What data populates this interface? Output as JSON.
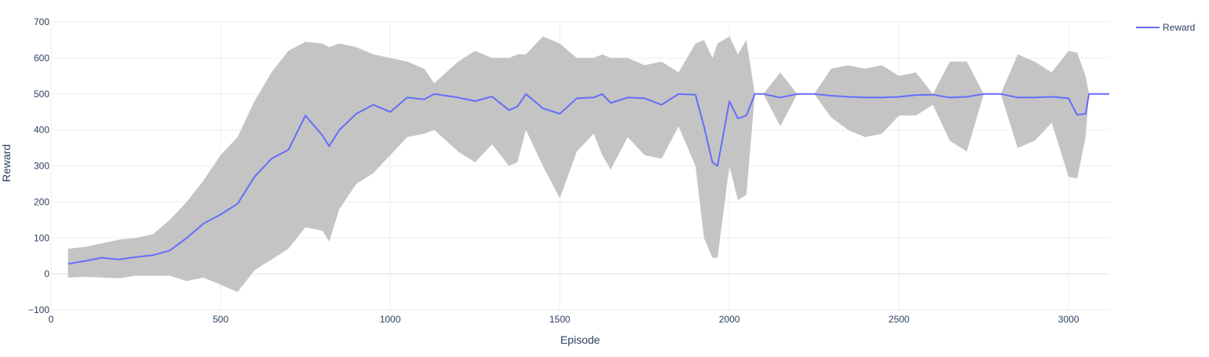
{
  "chart_data": {
    "type": "line",
    "title": "",
    "xlabel": "Episode",
    "ylabel": "Reward",
    "xlim": [
      0,
      3120
    ],
    "ylim": [
      -100,
      700
    ],
    "x_ticks": [
      0,
      500,
      1000,
      1500,
      2000,
      2500,
      3000
    ],
    "y_ticks": [
      -100,
      0,
      100,
      200,
      300,
      400,
      500,
      600,
      700
    ],
    "y_tick_labels": [
      "−100",
      "0",
      "100",
      "200",
      "300",
      "400",
      "500",
      "600",
      "700"
    ],
    "grid": true,
    "legend": {
      "position": "top-right",
      "entries": [
        "Reward"
      ]
    },
    "colors": {
      "line": "#636efa",
      "band": "#c4c4c4",
      "grid": "#ebedf3",
      "zero_line": "#ebedf3",
      "tick_text": "#2a3f5f"
    },
    "series": [
      {
        "name": "Reward",
        "x": [
          50,
          100,
          150,
          200,
          250,
          300,
          350,
          400,
          450,
          500,
          550,
          600,
          650,
          700,
          750,
          800,
          820,
          850,
          900,
          950,
          1000,
          1050,
          1100,
          1130,
          1200,
          1250,
          1300,
          1350,
          1375,
          1400,
          1450,
          1500,
          1550,
          1600,
          1625,
          1650,
          1700,
          1750,
          1800,
          1850,
          1900,
          1925,
          1950,
          1965,
          2000,
          2025,
          2050,
          2075,
          2085,
          2100,
          2150,
          2200,
          2250,
          2300,
          2350,
          2400,
          2450,
          2500,
          2550,
          2600,
          2650,
          2700,
          2750,
          2800,
          2850,
          2900,
          2950,
          3000,
          3025,
          3050,
          3060,
          3100,
          3120
        ],
        "y": [
          28,
          36,
          45,
          40,
          47,
          52,
          65,
          100,
          140,
          165,
          195,
          270,
          320,
          345,
          440,
          385,
          355,
          400,
          445,
          470,
          450,
          490,
          485,
          500,
          490,
          480,
          493,
          455,
          465,
          500,
          460,
          445,
          488,
          490,
          500,
          475,
          490,
          488,
          470,
          500,
          498,
          410,
          310,
          300,
          480,
          432,
          440,
          500,
          500,
          500,
          490,
          500,
          500,
          495,
          492,
          490,
          490,
          492,
          497,
          498,
          490,
          492,
          500,
          500,
          490,
          490,
          492,
          488,
          442,
          445,
          500,
          500,
          500
        ],
        "lower": [
          -10,
          -8,
          -10,
          -12,
          -5,
          -5,
          -5,
          -20,
          -10,
          -30,
          -50,
          10,
          40,
          70,
          130,
          120,
          90,
          180,
          250,
          280,
          330,
          380,
          390,
          400,
          340,
          310,
          360,
          300,
          310,
          400,
          300,
          210,
          340,
          390,
          330,
          290,
          380,
          330,
          320,
          410,
          300,
          100,
          45,
          45,
          300,
          205,
          220,
          500,
          500,
          500,
          410,
          500,
          500,
          435,
          400,
          380,
          390,
          440,
          440,
          470,
          370,
          340,
          500,
          500,
          350,
          370,
          420,
          270,
          265,
          380,
          500,
          500,
          500
        ],
        "upper": [
          70,
          75,
          85,
          95,
          100,
          110,
          150,
          200,
          260,
          330,
          380,
          480,
          560,
          620,
          645,
          640,
          630,
          640,
          630,
          610,
          600,
          590,
          570,
          530,
          590,
          620,
          600,
          600,
          610,
          610,
          660,
          640,
          600,
          600,
          610,
          600,
          600,
          580,
          590,
          560,
          640,
          650,
          600,
          640,
          660,
          610,
          650,
          500,
          500,
          500,
          560,
          500,
          500,
          570,
          580,
          570,
          580,
          550,
          560,
          500,
          590,
          590,
          500,
          500,
          610,
          590,
          560,
          620,
          615,
          550,
          500,
          500,
          500
        ],
        "gaps": [
          [
            2085,
            2165
          ],
          [
            2215,
            2295
          ]
        ]
      }
    ]
  }
}
